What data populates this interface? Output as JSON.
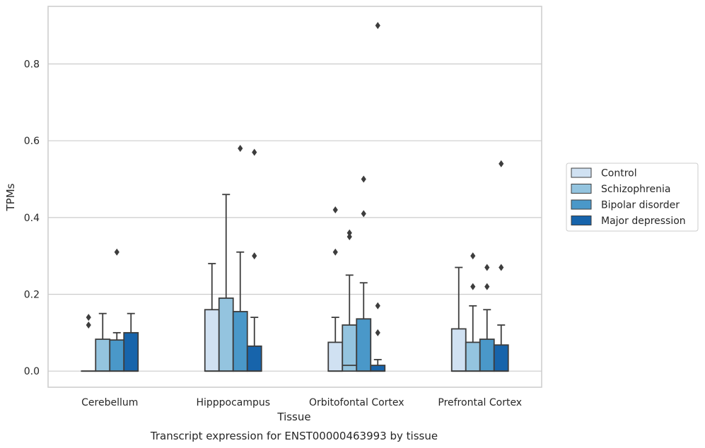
{
  "chart_data": {
    "type": "box",
    "xlabel": "Tissue",
    "ylabel": "TPMs",
    "caption": "Transcript expression for ENST00000463993 by tissue",
    "ylim": [
      -0.042,
      0.95
    ],
    "yticks": [
      "0.0",
      "0.2",
      "0.4",
      "0.6",
      "0.8"
    ],
    "grid": "horizontal",
    "legend_position": "right",
    "categories": [
      "Cerebellum",
      "Hipppocampus",
      "Orbitofontal Cortex",
      "Prefrontal Cortex"
    ],
    "series": [
      {
        "name": "Control",
        "color": "#d0e1f2",
        "boxes": [
          {
            "q1": 0.0,
            "median": 0.0,
            "q3": 0.0,
            "whisker_low": 0.0,
            "whisker_high": 0.0,
            "outliers": [
              0.12,
              0.14
            ]
          },
          {
            "q1": 0.0,
            "median": 0.0,
            "q3": 0.16,
            "whisker_low": 0.0,
            "whisker_high": 0.28,
            "outliers": []
          },
          {
            "q1": 0.0,
            "median": 0.0,
            "q3": 0.075,
            "whisker_low": 0.0,
            "whisker_high": 0.14,
            "outliers": [
              0.31,
              0.42
            ]
          },
          {
            "q1": 0.0,
            "median": 0.0,
            "q3": 0.11,
            "whisker_low": 0.0,
            "whisker_high": 0.27,
            "outliers": []
          }
        ]
      },
      {
        "name": "Schizophrenia",
        "color": "#94c4df",
        "boxes": [
          {
            "q1": 0.0,
            "median": 0.0,
            "q3": 0.083,
            "whisker_low": 0.0,
            "whisker_high": 0.15,
            "outliers": []
          },
          {
            "q1": 0.0,
            "median": 0.0,
            "q3": 0.19,
            "whisker_low": 0.0,
            "whisker_high": 0.46,
            "outliers": []
          },
          {
            "q1": 0.0,
            "median": 0.015,
            "q3": 0.12,
            "whisker_low": 0.0,
            "whisker_high": 0.25,
            "outliers": [
              0.35,
              0.36
            ]
          },
          {
            "q1": 0.0,
            "median": 0.0,
            "q3": 0.075,
            "whisker_low": 0.0,
            "whisker_high": 0.17,
            "outliers": [
              0.22,
              0.3
            ]
          }
        ]
      },
      {
        "name": "Bipolar disorder",
        "color": "#4a98c9",
        "boxes": [
          {
            "q1": 0.0,
            "median": 0.0,
            "q3": 0.081,
            "whisker_low": 0.0,
            "whisker_high": 0.1,
            "outliers": [
              0.31
            ]
          },
          {
            "q1": 0.0,
            "median": 0.0,
            "q3": 0.155,
            "whisker_low": 0.0,
            "whisker_high": 0.31,
            "outliers": [
              0.58
            ]
          },
          {
            "q1": 0.0,
            "median": 0.0,
            "q3": 0.136,
            "whisker_low": 0.0,
            "whisker_high": 0.23,
            "outliers": [
              0.41,
              0.5
            ]
          },
          {
            "q1": 0.0,
            "median": 0.0,
            "q3": 0.083,
            "whisker_low": 0.0,
            "whisker_high": 0.16,
            "outliers": [
              0.22,
              0.27
            ]
          }
        ]
      },
      {
        "name": "Major depression",
        "color": "#1764ab",
        "boxes": [
          {
            "q1": 0.0,
            "median": 0.0,
            "q3": 0.1,
            "whisker_low": 0.0,
            "whisker_high": 0.15,
            "outliers": []
          },
          {
            "q1": 0.0,
            "median": 0.0,
            "q3": 0.065,
            "whisker_low": 0.0,
            "whisker_high": 0.14,
            "outliers": [
              0.3,
              0.57
            ]
          },
          {
            "q1": 0.0,
            "median": 0.0,
            "q3": 0.015,
            "whisker_low": 0.0,
            "whisker_high": 0.03,
            "outliers": [
              0.1,
              0.17,
              0.9
            ]
          },
          {
            "q1": 0.0,
            "median": 0.0,
            "q3": 0.068,
            "whisker_low": 0.0,
            "whisker_high": 0.12,
            "outliers": [
              0.27,
              0.54
            ]
          }
        ]
      }
    ]
  }
}
